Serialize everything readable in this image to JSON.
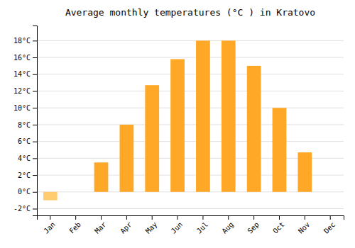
{
  "chart_data": {
    "type": "bar",
    "title": "Average monthly temperatures (°C ) in Kratovo",
    "categories": [
      "Jan",
      "Feb",
      "Mar",
      "Apr",
      "May",
      "Jun",
      "Jul",
      "Aug",
      "Sep",
      "Oct",
      "Nov",
      "Dec"
    ],
    "values": [
      -1.0,
      0.0,
      3.5,
      8.0,
      12.7,
      15.8,
      18.0,
      18.0,
      15.0,
      10.0,
      4.7,
      0.0
    ],
    "colors": [
      "#FFCC70",
      "#FFA726",
      "#FFA726",
      "#FFA726",
      "#FFA726",
      "#FFA726",
      "#FFA726",
      "#FFA726",
      "#FFA726",
      "#FFA726",
      "#FFA726",
      "#FFA726"
    ],
    "ylim": [
      -2.8,
      19.8
    ],
    "yticks": [
      {
        "value": -2,
        "label": "-2°C"
      },
      {
        "value": 0,
        "label": "0°C"
      },
      {
        "value": 2,
        "label": "2°C"
      },
      {
        "value": 4,
        "label": "4°C"
      },
      {
        "value": 6,
        "label": "6°C"
      },
      {
        "value": 8,
        "label": "8°C"
      },
      {
        "value": 10,
        "label": "10°C"
      },
      {
        "value": 12,
        "label": "12°C"
      },
      {
        "value": 14,
        "label": "14°C"
      },
      {
        "value": 16,
        "label": "16°C"
      },
      {
        "value": 18,
        "label": "18°C"
      }
    ],
    "grid": true
  }
}
